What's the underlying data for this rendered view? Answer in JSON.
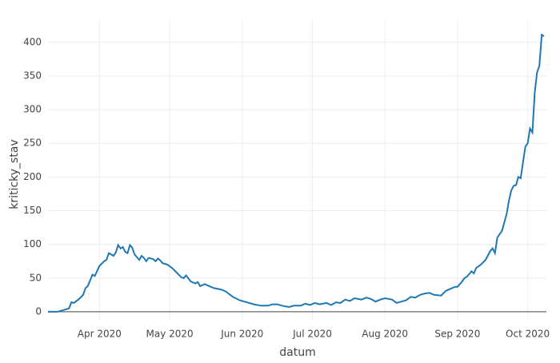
{
  "chart_data": {
    "type": "line",
    "x_label": "datum",
    "y_label": "kriticky_stav",
    "x": [
      "2020-03-10",
      "2020-03-14",
      "2020-03-17",
      "2020-03-19",
      "2020-03-20",
      "2020-03-21",
      "2020-03-23",
      "2020-03-25",
      "2020-03-26",
      "2020-03-27",
      "2020-03-29",
      "2020-03-30",
      "2020-04-01",
      "2020-04-03",
      "2020-04-04",
      "2020-04-05",
      "2020-04-07",
      "2020-04-08",
      "2020-04-09",
      "2020-04-10",
      "2020-04-11",
      "2020-04-12",
      "2020-04-13",
      "2020-04-14",
      "2020-04-15",
      "2020-04-16",
      "2020-04-18",
      "2020-04-19",
      "2020-04-20",
      "2020-04-21",
      "2020-04-22",
      "2020-04-24",
      "2020-04-25",
      "2020-04-26",
      "2020-04-27",
      "2020-04-28",
      "2020-04-30",
      "2020-05-02",
      "2020-05-04",
      "2020-05-06",
      "2020-05-07",
      "2020-05-08",
      "2020-05-10",
      "2020-05-12",
      "2020-05-13",
      "2020-05-14",
      "2020-05-16",
      "2020-05-18",
      "2020-05-20",
      "2020-05-23",
      "2020-05-25",
      "2020-05-28",
      "2020-05-31",
      "2020-06-03",
      "2020-06-06",
      "2020-06-09",
      "2020-06-12",
      "2020-06-14",
      "2020-06-16",
      "2020-06-18",
      "2020-06-21",
      "2020-06-23",
      "2020-06-26",
      "2020-06-28",
      "2020-06-30",
      "2020-07-02",
      "2020-07-04",
      "2020-07-07",
      "2020-07-09",
      "2020-07-11",
      "2020-07-13",
      "2020-07-15",
      "2020-07-17",
      "2020-07-19",
      "2020-07-22",
      "2020-07-24",
      "2020-07-26",
      "2020-07-28",
      "2020-07-30",
      "2020-08-01",
      "2020-08-04",
      "2020-08-06",
      "2020-08-08",
      "2020-08-10",
      "2020-08-12",
      "2020-08-14",
      "2020-08-16",
      "2020-08-18",
      "2020-08-20",
      "2020-08-22",
      "2020-08-25",
      "2020-08-27",
      "2020-08-29",
      "2020-08-31",
      "2020-09-01",
      "2020-09-03",
      "2020-09-04",
      "2020-09-05",
      "2020-09-07",
      "2020-09-08",
      "2020-09-09",
      "2020-09-11",
      "2020-09-13",
      "2020-09-15",
      "2020-09-16",
      "2020-09-17",
      "2020-09-18",
      "2020-09-20",
      "2020-09-22",
      "2020-09-23",
      "2020-09-24",
      "2020-09-25",
      "2020-09-26",
      "2020-09-27",
      "2020-09-28",
      "2020-09-29",
      "2020-09-30",
      "2020-10-01",
      "2020-10-02",
      "2020-10-03",
      "2020-10-04",
      "2020-10-05",
      "2020-10-06",
      "2020-10-07",
      "2020-10-08"
    ],
    "series": [
      {
        "name": "kriticky_stav",
        "color": "#1f77b4",
        "values": [
          0,
          0,
          3,
          5,
          14,
          13,
          18,
          25,
          35,
          38,
          55,
          53,
          68,
          75,
          77,
          87,
          83,
          88,
          99,
          94,
          96,
          89,
          87,
          99,
          95,
          85,
          77,
          83,
          80,
          75,
          80,
          78,
          75,
          79,
          76,
          72,
          70,
          65,
          58,
          51,
          50,
          54,
          45,
          42,
          44,
          38,
          41,
          38,
          35,
          33,
          30,
          22,
          17,
          14,
          11,
          9,
          9,
          11,
          11,
          9,
          7,
          9,
          9,
          12,
          10,
          13,
          11,
          13,
          10,
          14,
          13,
          18,
          16,
          20,
          18,
          21,
          19,
          15,
          18,
          20,
          18,
          13,
          15,
          17,
          22,
          21,
          25,
          27,
          28,
          25,
          24,
          31,
          34,
          37,
          37,
          45,
          50,
          52,
          60,
          57,
          65,
          70,
          77,
          90,
          94,
          87,
          110,
          120,
          145,
          165,
          180,
          187,
          188,
          200,
          198,
          222,
          245,
          250,
          272,
          266,
          325,
          355,
          365,
          411,
          409
        ]
      }
    ],
    "xlim": [
      "2020-03-10",
      "2020-10-09"
    ],
    "xticks": [
      {
        "value": "2020-04-01",
        "label": "Apr 2020"
      },
      {
        "value": "2020-05-01",
        "label": "May 2020"
      },
      {
        "value": "2020-06-01",
        "label": "Jun 2020"
      },
      {
        "value": "2020-07-01",
        "label": "Jul 2020"
      },
      {
        "value": "2020-08-01",
        "label": "Aug 2020"
      },
      {
        "value": "2020-09-01",
        "label": "Sep 2020"
      },
      {
        "value": "2020-10-01",
        "label": "Oct 2020"
      }
    ],
    "ylim": [
      -12,
      433
    ],
    "yticks": [
      0,
      50,
      100,
      150,
      200,
      250,
      300,
      350,
      400
    ],
    "grid": true
  }
}
